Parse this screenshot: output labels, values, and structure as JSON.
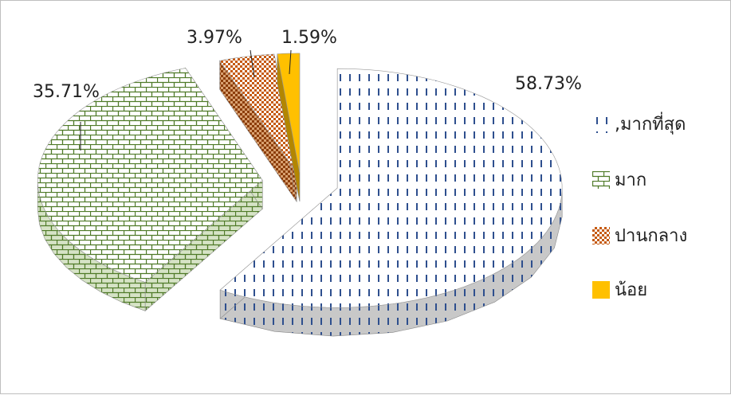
{
  "chart_data": {
    "type": "pie",
    "title": "",
    "categories": [
      ",มากที่สุด",
      "มาก",
      "ปานกลาง",
      "น้อย"
    ],
    "values": [
      58.73,
      35.71,
      3.97,
      1.59
    ],
    "data_labels": [
      "58.73%",
      "35.71%",
      "3.97%",
      "1.59%"
    ],
    "colors": [
      "#2e4f8e",
      "#4f7a28",
      "#c55a11",
      "#ffc000"
    ],
    "legend_position": "right",
    "style": "3d-exploded"
  }
}
